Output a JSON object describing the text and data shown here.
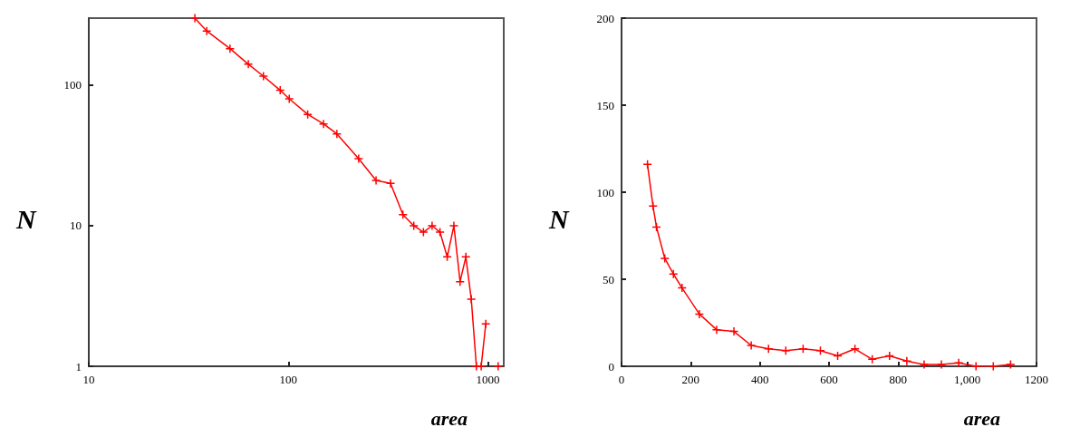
{
  "chart_data": [
    {
      "type": "line",
      "xlabel": "area",
      "ylabel": "N",
      "log": "xy",
      "xlim": [
        10,
        1200
      ],
      "ylim": [
        1,
        300
      ],
      "xticks": [
        10,
        100,
        1000
      ],
      "yticks": [
        1,
        10,
        100
      ],
      "marker": "cross",
      "line_style": "solid",
      "series": [
        {
          "color": "#ff0000",
          "x": [
            34,
            39,
            51,
            63,
            75,
            91,
            101,
            125,
            150,
            175,
            225,
            275,
            325,
            375,
            425,
            475,
            525,
            575,
            625,
            675,
            725,
            775,
            825,
            875,
            925,
            975,
            1025,
            1075,
            1125
          ],
          "values": [
            300,
            243,
            182,
            141,
            116,
            92,
            80,
            62,
            53,
            45,
            30,
            21,
            20,
            12,
            10,
            9,
            10,
            9,
            6,
            10,
            4,
            6,
            3,
            1,
            1,
            2,
            null,
            null,
            1
          ]
        }
      ]
    },
    {
      "type": "line",
      "xlabel": "area",
      "ylabel": "N",
      "xlim": [
        0,
        1200
      ],
      "ylim": [
        0,
        200
      ],
      "xticks": [
        0,
        200,
        400,
        600,
        800,
        {
          "value": 1000,
          "label": "1,000"
        },
        1200
      ],
      "yticks": [
        0,
        50,
        100,
        150,
        200
      ],
      "marker": "cross",
      "line_style": "solid",
      "series": [
        {
          "color": "#ff0000",
          "x": [
            75,
            91,
            101,
            125,
            150,
            175,
            225,
            275,
            325,
            375,
            425,
            475,
            525,
            575,
            625,
            675,
            725,
            775,
            825,
            875,
            925,
            975,
            1025,
            1075,
            1125
          ],
          "values": [
            116,
            92,
            80,
            62,
            53,
            45,
            30,
            21,
            20,
            12,
            10,
            9,
            10,
            9,
            6,
            10,
            4,
            6,
            3,
            1,
            1,
            2,
            0,
            0,
            1
          ]
        }
      ]
    }
  ]
}
